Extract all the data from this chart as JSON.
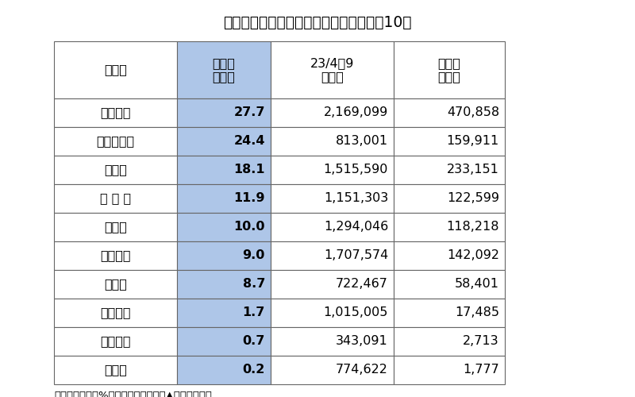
{
  "title": "地域銀の定期性預金前期比増加率　上位10行",
  "footer": "単位：百万円、%、期中平残ベース、▲は減少、低下",
  "headers": [
    "銀行名",
    "前期比\n増加率",
    "23/4～9\n期残高",
    "前期比\n増加額"
  ],
  "rows": [
    [
      "山陰合同",
      "27.7",
      "2,169,099",
      "470,858"
    ],
    [
      "東京スター",
      "24.4",
      "813,001",
      "159,911"
    ],
    [
      "愛　知",
      "18.1",
      "1,515,590",
      "233,151"
    ],
    [
      "名 古 屋",
      "11.9",
      "1,151,303",
      "122,599"
    ],
    [
      "西　京",
      "10.0",
      "1,294,046",
      "118,218"
    ],
    [
      "きらぼし",
      "9.0",
      "1,707,574",
      "142,092"
    ],
    [
      "中　京",
      "8.7",
      "722,467",
      "58,401"
    ],
    [
      "徳島大正",
      "1.7",
      "1,015,005",
      "17,485"
    ],
    [
      "静岡中央",
      "0.7",
      "343,091",
      "2,713"
    ],
    [
      "香　川",
      "0.2",
      "774,622",
      "1,777"
    ]
  ],
  "header2_bg": "#aec6e8",
  "row_bg": "#ffffff",
  "border_color": "#666666",
  "text_color": "#000000",
  "title_fontsize": 13.5,
  "header_fontsize": 11.5,
  "cell_fontsize": 11.5,
  "footer_fontsize": 9.5
}
